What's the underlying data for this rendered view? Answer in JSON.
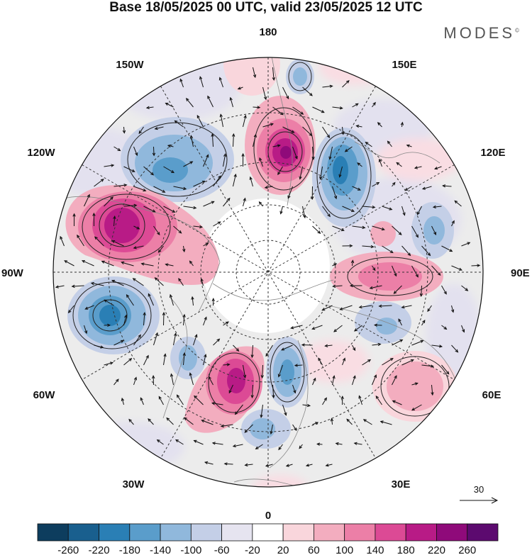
{
  "title": "Base 18/05/2025 00 UTC, valid 23/05/2025 12 UTC",
  "brand": "MODES",
  "brand_mark": "©",
  "map_labels": {
    "lon_180": "180",
    "lon_150w": "150W",
    "lon_150e": "150E",
    "lon_120w": "120W",
    "lon_120e": "120E",
    "lon_90w": "90W",
    "lon_90e": "90E",
    "lon_60w": "60W",
    "lon_60e": "60E",
    "lon_30w": "30W",
    "lon_30e": "30E",
    "lon_0": "0"
  },
  "reference_vector_label": "30",
  "colorbar": {
    "colors": [
      "#0d3d5e",
      "#195f8e",
      "#2a7fb5",
      "#5a9dcb",
      "#90b8dc",
      "#c4cfe7",
      "#e6e4f0",
      "#ffffff",
      "#f9d6dc",
      "#f3adbf",
      "#ec7fa7",
      "#dc4a95",
      "#b81b86",
      "#8f0a7a",
      "#5c0a6f"
    ],
    "tick_labels": [
      "-260",
      "-220",
      "-180",
      "-140",
      "-100",
      "-60",
      "-20",
      "20",
      "60",
      "100",
      "140",
      "180",
      "220",
      "260"
    ]
  }
}
